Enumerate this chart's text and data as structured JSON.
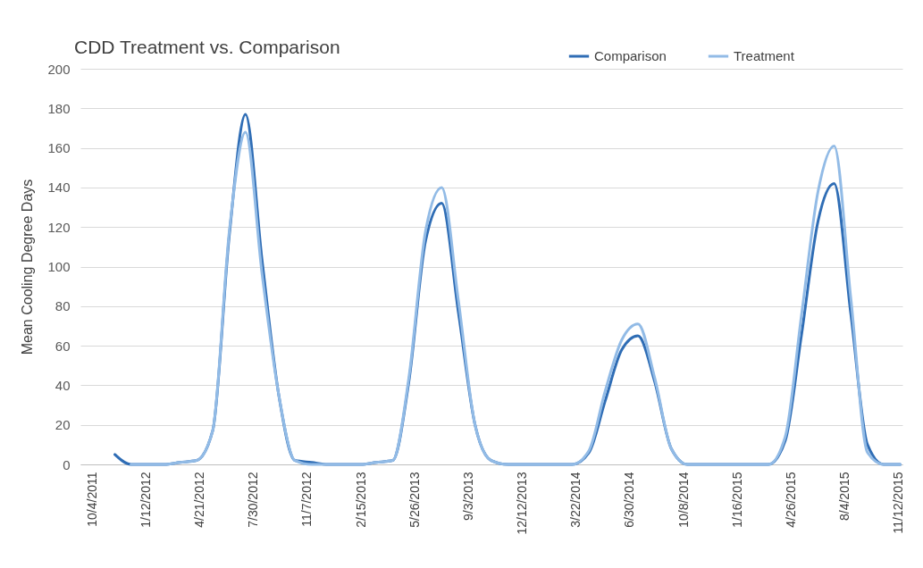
{
  "chart_data": {
    "type": "line",
    "title": "CDD Treatment vs. Comparison",
    "ylabel": "Mean Cooling Degree Days",
    "x": [
      "2011-11-15",
      "2011-12-15",
      "2012-01-15",
      "2012-02-15",
      "2012-03-15",
      "2012-04-15",
      "2012-05-15",
      "2012-06-15",
      "2012-07-15",
      "2012-08-15",
      "2012-09-15",
      "2012-10-15",
      "2012-11-15",
      "2012-12-15",
      "2013-01-15",
      "2013-02-15",
      "2013-03-15",
      "2013-04-15",
      "2013-05-15",
      "2013-06-15",
      "2013-07-15",
      "2013-08-15",
      "2013-09-15",
      "2013-10-15",
      "2013-11-15",
      "2013-12-15",
      "2014-01-15",
      "2014-02-15",
      "2014-03-15",
      "2014-04-15",
      "2014-05-15",
      "2014-06-15",
      "2014-07-15",
      "2014-08-15",
      "2014-09-15",
      "2014-10-15",
      "2014-11-15",
      "2014-12-15",
      "2015-01-15",
      "2015-02-15",
      "2015-03-15",
      "2015-04-15",
      "2015-05-15",
      "2015-06-15",
      "2015-07-15",
      "2015-08-15",
      "2015-09-15",
      "2015-10-15",
      "2015-11-15"
    ],
    "series": [
      {
        "name": "Comparison",
        "color": "#2f6db5",
        "values": [
          5,
          0,
          0,
          0,
          1,
          2,
          17,
          116,
          177,
          103,
          35,
          2,
          1,
          0,
          0,
          0,
          1,
          2,
          42,
          113,
          132,
          77,
          20,
          2,
          0,
          0,
          0,
          0,
          0,
          6,
          32,
          58,
          65,
          42,
          8,
          0,
          0,
          0,
          0,
          0,
          0,
          12,
          65,
          123,
          142,
          76,
          10,
          0,
          0
        ]
      },
      {
        "name": "Treatment",
        "color": "#92bbe6",
        "values": [
          null,
          0,
          0,
          0,
          1,
          2,
          17,
          118,
          168,
          96,
          35,
          2,
          0,
          0,
          0,
          0,
          1,
          2,
          44,
          118,
          140,
          83,
          20,
          2,
          0,
          0,
          0,
          0,
          0,
          7,
          37,
          63,
          71,
          44,
          8,
          0,
          0,
          0,
          0,
          0,
          0,
          14,
          75,
          138,
          161,
          84,
          6,
          0,
          0
        ]
      }
    ],
    "xlim": [
      "2011-09-12",
      "2015-11-19"
    ],
    "xticks": [
      {
        "value": "2011-10-04",
        "label": "10/4/2011"
      },
      {
        "value": "2012-01-12",
        "label": "1/12/2012"
      },
      {
        "value": "2012-04-21",
        "label": "4/21/2012"
      },
      {
        "value": "2012-07-30",
        "label": "7/30/2012"
      },
      {
        "value": "2012-11-07",
        "label": "11/7/2012"
      },
      {
        "value": "2013-02-15",
        "label": "2/15/2013"
      },
      {
        "value": "2013-05-26",
        "label": "5/26/2013"
      },
      {
        "value": "2013-09-03",
        "label": "9/3/2013"
      },
      {
        "value": "2013-12-12",
        "label": "12/12/2013"
      },
      {
        "value": "2014-03-22",
        "label": "3/22/2014"
      },
      {
        "value": "2014-06-30",
        "label": "6/30/2014"
      },
      {
        "value": "2014-10-08",
        "label": "10/8/2014"
      },
      {
        "value": "2015-01-16",
        "label": "1/16/2015"
      },
      {
        "value": "2015-04-26",
        "label": "4/26/2015"
      },
      {
        "value": "2015-08-04",
        "label": "8/4/2015"
      },
      {
        "value": "2015-11-12",
        "label": "11/12/2015"
      }
    ],
    "ylim": [
      0,
      200
    ],
    "yticks": [
      0,
      20,
      40,
      60,
      80,
      100,
      120,
      140,
      160,
      180,
      200
    ],
    "grid": "y",
    "legend": "top right"
  }
}
